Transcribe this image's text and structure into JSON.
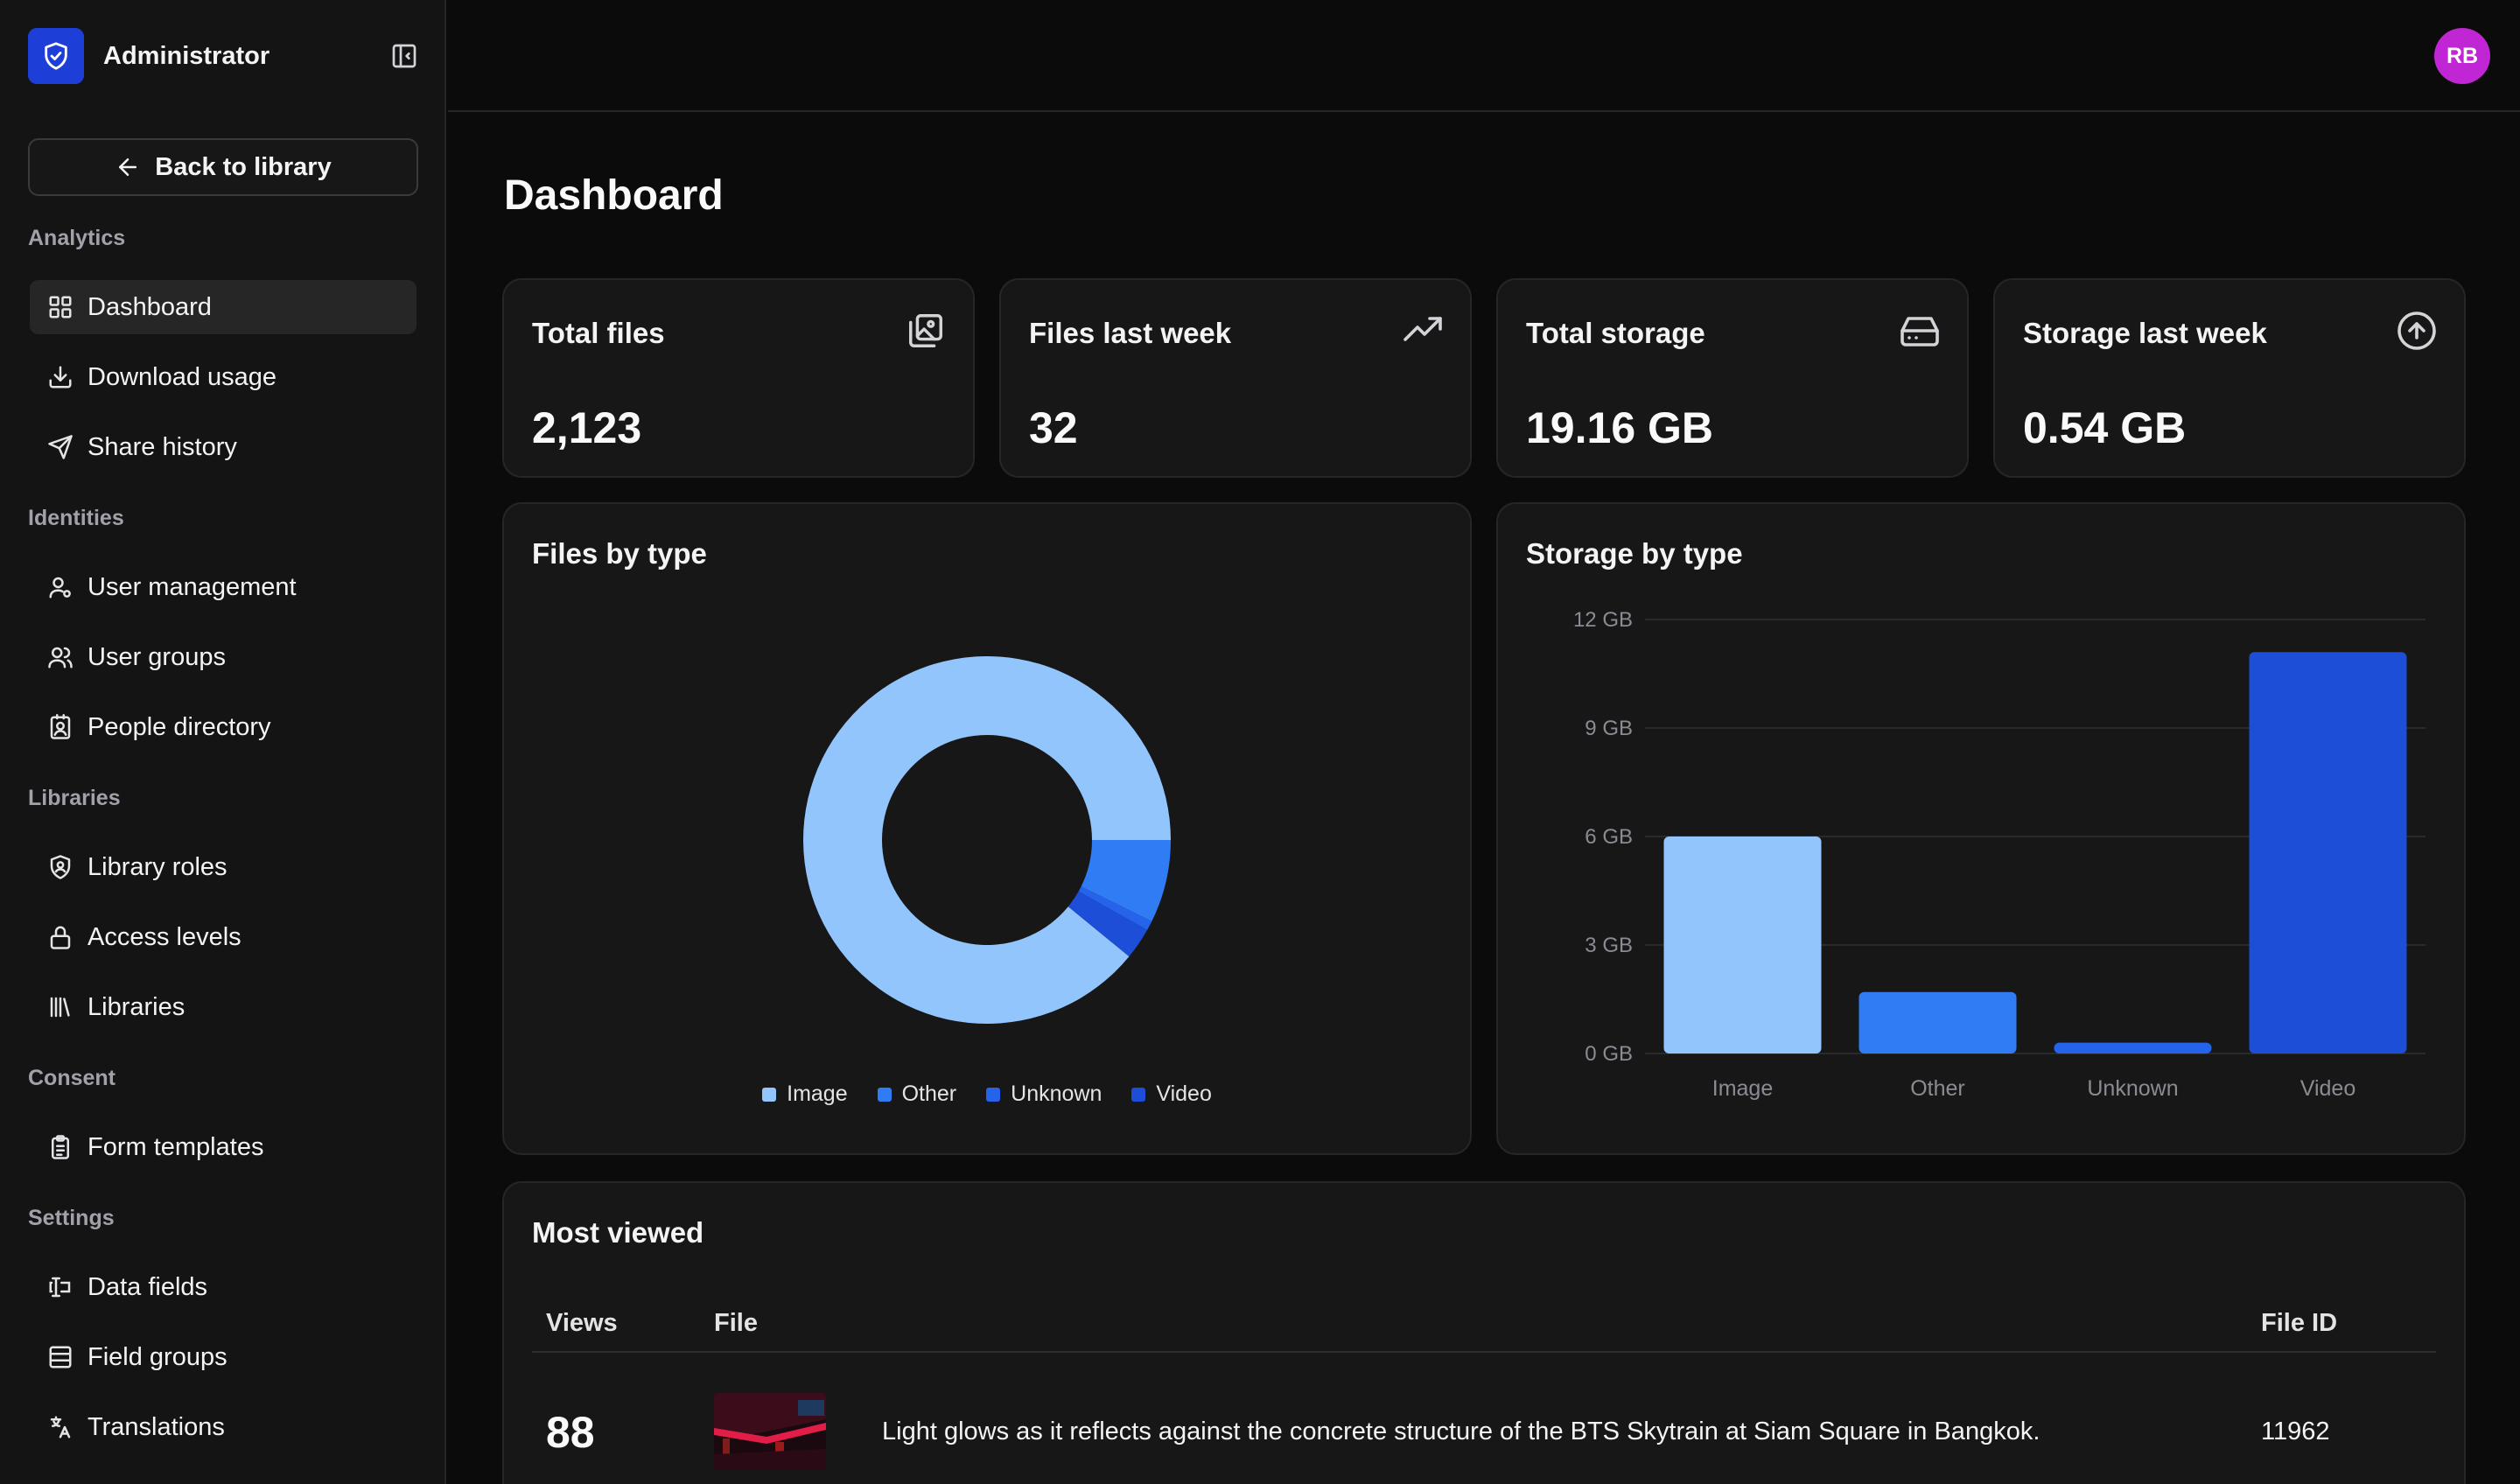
{
  "sidebar": {
    "brand_name": "Administrator",
    "back_label": "Back to library",
    "sections": [
      {
        "label": "Analytics",
        "items": [
          {
            "label": "Dashboard",
            "icon": "dashboard-grid-icon",
            "active": true
          },
          {
            "label": "Download usage",
            "icon": "download-icon"
          },
          {
            "label": "Share history",
            "icon": "send-icon"
          }
        ]
      },
      {
        "label": "Identities",
        "items": [
          {
            "label": "User management",
            "icon": "user-gear-icon"
          },
          {
            "label": "User groups",
            "icon": "users-icon"
          },
          {
            "label": "People directory",
            "icon": "contact-book-icon"
          }
        ]
      },
      {
        "label": "Libraries",
        "items": [
          {
            "label": "Library roles",
            "icon": "shield-user-icon"
          },
          {
            "label": "Access levels",
            "icon": "lock-icon"
          },
          {
            "label": "Libraries",
            "icon": "library-books-icon"
          }
        ]
      },
      {
        "label": "Consent",
        "items": [
          {
            "label": "Form templates",
            "icon": "clipboard-icon"
          }
        ]
      },
      {
        "label": "Settings",
        "items": [
          {
            "label": "Data fields",
            "icon": "text-field-icon"
          },
          {
            "label": "Field groups",
            "icon": "table-icon"
          },
          {
            "label": "Translations",
            "icon": "translate-icon"
          }
        ]
      }
    ]
  },
  "header": {
    "avatar_initials": "RB"
  },
  "page": {
    "title": "Dashboard"
  },
  "stats": [
    {
      "title": "Total files",
      "value": "2,123",
      "icon": "image-stack-icon"
    },
    {
      "title": "Files last week",
      "value": "32",
      "icon": "trending-up-icon"
    },
    {
      "title": "Total storage",
      "value": "19.16 GB",
      "icon": "hard-drive-icon"
    },
    {
      "title": "Storage last week",
      "value": "0.54 GB",
      "icon": "arrow-up-circle-icon"
    }
  ],
  "files_by_type": {
    "title": "Files by type",
    "chart_data": {
      "type": "pie",
      "donut": true,
      "categories": [
        "Image",
        "Other",
        "Unknown",
        "Video"
      ],
      "values": [
        1891,
        155,
        18,
        59
      ],
      "colors": [
        "#93c5fd",
        "#2f7cf5",
        "#2563eb",
        "#1d4ed8"
      ],
      "legend": "bottom"
    }
  },
  "storage_by_type": {
    "title": "Storage by type",
    "chart_data": {
      "type": "bar",
      "categories": [
        "Image",
        "Other",
        "Unknown",
        "Video"
      ],
      "values": [
        6.0,
        1.7,
        0.3,
        11.1
      ],
      "colors": [
        "#93c5fd",
        "#2f7cf5",
        "#2563eb",
        "#1d4ed8"
      ],
      "y_ticks": [
        "0 GB",
        "3 GB",
        "6 GB",
        "9 GB",
        "12 GB"
      ],
      "ylim": [
        0,
        12
      ],
      "grid": true
    }
  },
  "most_viewed": {
    "title": "Most viewed",
    "columns": {
      "views": "Views",
      "file": "File",
      "file_id": "File ID"
    },
    "rows": [
      {
        "views": "88",
        "file": "Light glows as it reflects against the concrete structure of the BTS Skytrain at Siam Square in Bangkok.",
        "file_id": "11962"
      }
    ]
  }
}
